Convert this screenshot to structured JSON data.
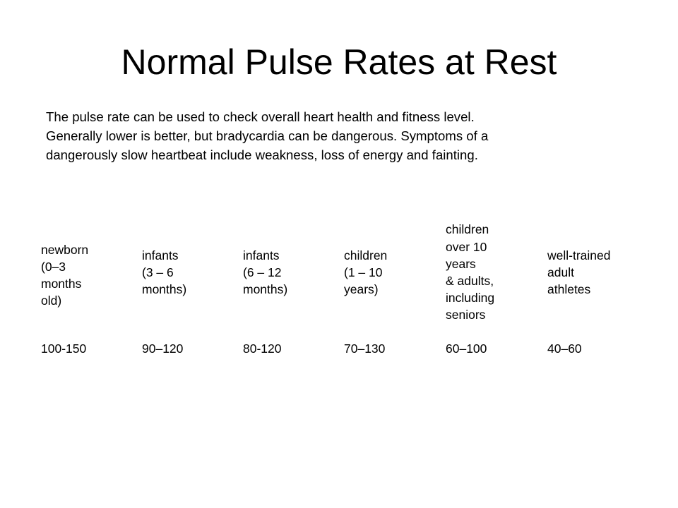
{
  "title": "Normal Pulse Rates at Rest",
  "intro": {
    "line1": "The pulse rate can be used to check overall heart health and fitness level.",
    "line2": "Generally lower is better, but bradycardia can be dangerous. Symptoms of a",
    "line3": "dangerously slow heartbeat include weakness, loss of energy and fainting."
  },
  "table": {
    "columns": [
      {
        "header_lines": [
          "newborn",
          "(0–3",
          "months",
          "old)"
        ],
        "value": "100-150"
      },
      {
        "header_lines": [
          "infants",
          "(3 – 6",
          "months)"
        ],
        "value": "90–120"
      },
      {
        "header_lines": [
          "infants",
          "(6 – 12",
          "months)"
        ],
        "value": "80-120"
      },
      {
        "header_lines": [
          "children",
          "(1 – 10",
          "years)"
        ],
        "value": "70–130"
      },
      {
        "header_lines": [
          "children",
          "over 10",
          "years",
          "& adults,",
          "including",
          "seniors"
        ],
        "value": "60–100"
      },
      {
        "header_lines": [
          "well-trained",
          "adult",
          "athletes"
        ],
        "value": "40–60"
      }
    ]
  }
}
